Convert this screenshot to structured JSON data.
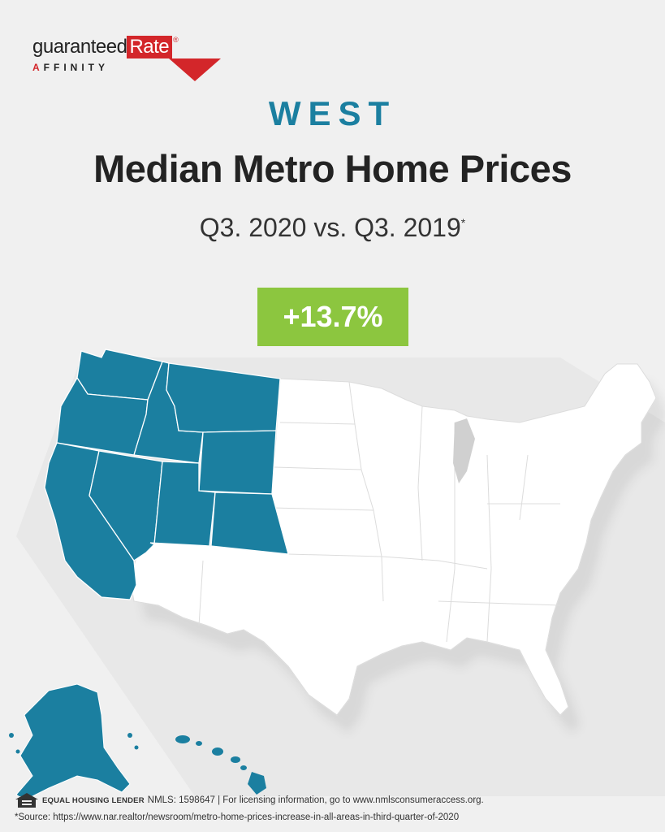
{
  "logo": {
    "word1": "guaranteed",
    "word2": "Rate",
    "registered": "®",
    "sub_first": "A",
    "sub_rest": "FFINITY"
  },
  "header": {
    "region": "WEST",
    "title": "Median Metro Home Prices",
    "subtitle": "Q3. 2020 vs. Q3. 2019",
    "subtitle_mark": "*"
  },
  "badge": {
    "value": "+13.7%"
  },
  "map": {
    "highlighted_region": "West",
    "highlight_color": "#1b7fa0",
    "base_color": "#ffffff",
    "highlighted_states": [
      "Washington",
      "Oregon",
      "California",
      "Idaho",
      "Nevada",
      "Montana",
      "Wyoming",
      "Utah",
      "Colorado",
      "Alaska",
      "Hawaii"
    ]
  },
  "footer": {
    "ehl_label": "EQUAL HOUSING LENDER",
    "licensing": "NMLS: 1598647 | For licensing information, go to www.nmlsconsumeraccess.org.",
    "source": "*Source: https://www.nar.realtor/newsroom/metro-home-prices-increase-in-all-areas-in-third-quarter-of-2020"
  }
}
